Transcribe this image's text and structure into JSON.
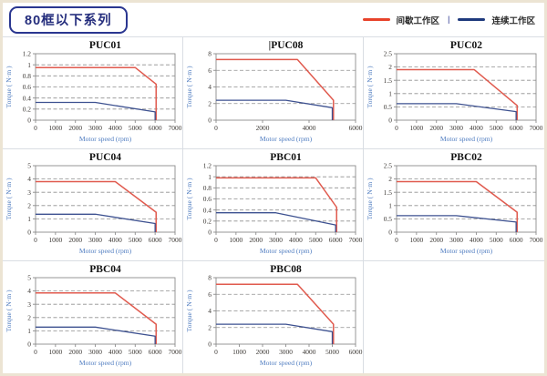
{
  "header": {
    "title": "80框以下系列"
  },
  "legend": {
    "intermittent_label": "间歇工作区",
    "separator": "|",
    "continuous_label": "连续工作区"
  },
  "colors": {
    "legend_red": "#e8432b",
    "legend_blue": "#1f3a7d",
    "chart_red": "#e05a4e",
    "chart_blue": "#3d5190",
    "gridline": "#8f8f8f",
    "frame": "#8c8c8c",
    "tick_text": "#3a3632",
    "axis_label": "#4f7cc0",
    "title_text": "#111111",
    "cell_border": "#d9dde3",
    "page_border": "#ece4d3",
    "header_navy": "#252e7d"
  },
  "axis": {
    "xlabel": "Motor speed (rpm)",
    "ylabel": "Torque ( N·m )"
  },
  "series_legend": {
    "red": "间歇工作区",
    "blue": "连续工作区"
  },
  "chart_data": [
    {
      "type": "line",
      "title": "PUC01",
      "caret": false,
      "xlabel": "Motor speed (rpm)",
      "ylabel": "Torque ( N·m )",
      "xlim": [
        0,
        7000
      ],
      "ylim": [
        0,
        1.2
      ],
      "xticks": [
        0,
        1000,
        2000,
        3000,
        4000,
        5000,
        6000,
        7000
      ],
      "yticks": [
        0,
        0.2,
        0.4,
        0.6,
        0.8,
        1,
        1.2
      ],
      "series": [
        {
          "name": "间歇工作区",
          "color": "red",
          "points": [
            [
              0,
              0.95
            ],
            [
              5000,
              0.95
            ],
            [
              6050,
              0.65
            ],
            [
              6050,
              0
            ]
          ]
        },
        {
          "name": "连续工作区",
          "color": "blue",
          "points": [
            [
              0,
              0.32
            ],
            [
              3000,
              0.32
            ],
            [
              6000,
              0.15
            ],
            [
              6000,
              0
            ]
          ]
        }
      ]
    },
    {
      "type": "line",
      "title": "PUC08",
      "caret": true,
      "xlabel": "Motor speed (rpm)",
      "ylabel": "Torque ( N·m )",
      "xlim": [
        0,
        6000
      ],
      "ylim": [
        0,
        8
      ],
      "xticks": [
        0,
        2000,
        4000,
        6000
      ],
      "yticks": [
        0,
        2,
        4,
        6,
        8
      ],
      "series": [
        {
          "name": "间歇工作区",
          "color": "red",
          "points": [
            [
              0,
              7.3
            ],
            [
              3500,
              7.3
            ],
            [
              5050,
              2.4
            ],
            [
              5050,
              0
            ]
          ]
        },
        {
          "name": "连续工作区",
          "color": "blue",
          "points": [
            [
              0,
              2.4
            ],
            [
              3000,
              2.4
            ],
            [
              5000,
              1.5
            ],
            [
              5000,
              0
            ]
          ]
        }
      ]
    },
    {
      "type": "line",
      "title": "PUC02",
      "caret": false,
      "xlabel": "Motor speed (rpm)",
      "ylabel": "Torque ( N·m )",
      "xlim": [
        0,
        7000
      ],
      "ylim": [
        0,
        2.5
      ],
      "xticks": [
        0,
        1000,
        2000,
        3000,
        4000,
        5000,
        6000,
        7000
      ],
      "yticks": [
        0,
        0.5,
        1,
        1.5,
        2,
        2.5
      ],
      "series": [
        {
          "name": "间歇工作区",
          "color": "red",
          "points": [
            [
              0,
              1.9
            ],
            [
              3900,
              1.9
            ],
            [
              6050,
              0.55
            ],
            [
              6050,
              0
            ]
          ]
        },
        {
          "name": "连续工作区",
          "color": "blue",
          "points": [
            [
              0,
              0.62
            ],
            [
              3000,
              0.62
            ],
            [
              6000,
              0.32
            ],
            [
              6000,
              0
            ]
          ]
        }
      ]
    },
    {
      "type": "line",
      "title": "PUC04",
      "caret": false,
      "xlabel": "Motor speed (rpm)",
      "ylabel": "Torque ( N·m )",
      "xlim": [
        0,
        7000
      ],
      "ylim": [
        0,
        5
      ],
      "xticks": [
        0,
        1000,
        2000,
        3000,
        4000,
        5000,
        6000,
        7000
      ],
      "yticks": [
        0,
        1,
        2,
        3,
        4,
        5
      ],
      "series": [
        {
          "name": "间歇工作区",
          "color": "red",
          "points": [
            [
              0,
              3.8
            ],
            [
              4000,
              3.8
            ],
            [
              6050,
              1.5
            ],
            [
              6050,
              0
            ]
          ]
        },
        {
          "name": "连续工作区",
          "color": "blue",
          "points": [
            [
              0,
              1.35
            ],
            [
              3000,
              1.35
            ],
            [
              6000,
              0.65
            ],
            [
              6000,
              0
            ]
          ]
        }
      ]
    },
    {
      "type": "line",
      "title": "PBC01",
      "caret": false,
      "xlabel": "Motor speed (rpm)",
      "ylabel": "Torque ( N·m )",
      "xlim": [
        0,
        7000
      ],
      "ylim": [
        0,
        1.2
      ],
      "xticks": [
        0,
        1000,
        2000,
        3000,
        4000,
        5000,
        6000,
        7000
      ],
      "yticks": [
        0,
        0.2,
        0.4,
        0.6,
        0.8,
        1,
        1.2
      ],
      "series": [
        {
          "name": "间歇工作区",
          "color": "red",
          "points": [
            [
              0,
              0.98
            ],
            [
              5000,
              0.98
            ],
            [
              6050,
              0.45
            ],
            [
              6050,
              0
            ]
          ]
        },
        {
          "name": "连续工作区",
          "color": "blue",
          "points": [
            [
              0,
              0.35
            ],
            [
              3000,
              0.35
            ],
            [
              6000,
              0.13
            ],
            [
              6000,
              0
            ]
          ]
        }
      ]
    },
    {
      "type": "line",
      "title": "PBC02",
      "caret": false,
      "xlabel": "Motor speed (rpm)",
      "ylabel": "Torque ( N·m )",
      "xlim": [
        0,
        7000
      ],
      "ylim": [
        0,
        2.5
      ],
      "xticks": [
        0,
        1000,
        2000,
        3000,
        4000,
        5000,
        6000,
        7000
      ],
      "yticks": [
        0,
        0.5,
        1,
        1.5,
        2,
        2.5
      ],
      "series": [
        {
          "name": "间歇工作区",
          "color": "red",
          "points": [
            [
              0,
              1.9
            ],
            [
              4000,
              1.9
            ],
            [
              6050,
              0.75
            ],
            [
              6050,
              0
            ]
          ]
        },
        {
          "name": "连续工作区",
          "color": "blue",
          "points": [
            [
              0,
              0.62
            ],
            [
              3000,
              0.62
            ],
            [
              6000,
              0.38
            ],
            [
              6000,
              0
            ]
          ]
        }
      ]
    },
    {
      "type": "line",
      "title": "PBC04",
      "caret": false,
      "xlabel": "Motor speed (rpm)",
      "ylabel": "Torque ( N·m )",
      "xlim": [
        0,
        7000
      ],
      "ylim": [
        0,
        5
      ],
      "xticks": [
        0,
        1000,
        2000,
        3000,
        4000,
        5000,
        6000,
        7000
      ],
      "yticks": [
        0,
        1,
        2,
        3,
        4,
        5
      ],
      "series": [
        {
          "name": "间歇工作区",
          "color": "red",
          "points": [
            [
              0,
              3.85
            ],
            [
              4000,
              3.85
            ],
            [
              6050,
              1.5
            ],
            [
              6050,
              0
            ]
          ]
        },
        {
          "name": "连续工作区",
          "color": "blue",
          "points": [
            [
              0,
              1.28
            ],
            [
              3000,
              1.28
            ],
            [
              6000,
              0.6
            ],
            [
              6000,
              0
            ]
          ]
        }
      ]
    },
    {
      "type": "line",
      "title": "PBC08",
      "caret": false,
      "xlabel": "Motor speed (rpm)",
      "ylabel": "Torque ( N·m )",
      "xlim": [
        0,
        6000
      ],
      "ylim": [
        0,
        8
      ],
      "xticks": [
        0,
        1000,
        2000,
        3000,
        4000,
        5000,
        6000
      ],
      "yticks": [
        0,
        2,
        4,
        6,
        8
      ],
      "series": [
        {
          "name": "间歇工作区",
          "color": "red",
          "points": [
            [
              0,
              7.2
            ],
            [
              3500,
              7.2
            ],
            [
              5050,
              2.4
            ],
            [
              5050,
              0
            ]
          ]
        },
        {
          "name": "连续工作区",
          "color": "blue",
          "points": [
            [
              0,
              2.4
            ],
            [
              3000,
              2.4
            ],
            [
              5000,
              1.5
            ],
            [
              5000,
              0
            ]
          ]
        }
      ]
    }
  ]
}
